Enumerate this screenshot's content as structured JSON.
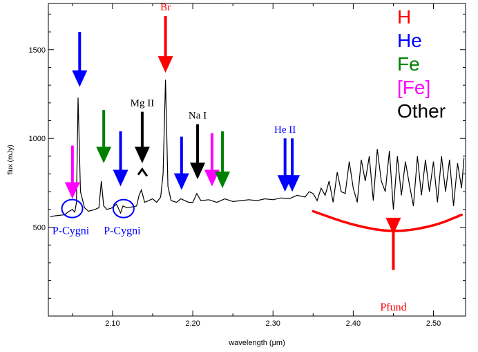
{
  "chart_data": {
    "type": "line",
    "xlabel": "wavelength (μm)",
    "ylabel": "flux (mJy)",
    "xlim": [
      2.02,
      2.54
    ],
    "ylim": [
      0,
      1760
    ],
    "x_ticks": [
      "2.10",
      "2.20",
      "2.30",
      "2.40",
      "2.50"
    ],
    "y_ticks": [
      "500",
      "1000",
      "1500"
    ],
    "x_tick_values": [
      2.1,
      2.2,
      2.3,
      2.4,
      2.5
    ],
    "y_tick_values": [
      500,
      1000,
      1500
    ],
    "grid": false,
    "legend_position": "top-right",
    "legend": [
      {
        "label": "H",
        "color": "#ff0000"
      },
      {
        "label": "He",
        "color": "#0000ff"
      },
      {
        "label": "Fe",
        "color": "#008000"
      },
      {
        "label": "[Fe]",
        "color": "#ff00ff"
      },
      {
        "label": "Other",
        "color": "#000000"
      }
    ],
    "line_color": "#000000",
    "series": [
      {
        "x": [
          2.022,
          2.03,
          2.04,
          2.046,
          2.05,
          2.053,
          2.055,
          2.057,
          2.06,
          2.065,
          2.07,
          2.078,
          2.083,
          2.086,
          2.089,
          2.093,
          2.1,
          2.105,
          2.11,
          2.113,
          2.118,
          2.125,
          2.13,
          2.133,
          2.136,
          2.14,
          2.145,
          2.15,
          2.155,
          2.16,
          2.163,
          2.166,
          2.169,
          2.173,
          2.18,
          2.185,
          2.19,
          2.195,
          2.2,
          2.205,
          2.21,
          2.22,
          2.23,
          2.24,
          2.25,
          2.26,
          2.27,
          2.28,
          2.29,
          2.3,
          2.31,
          2.32,
          2.33,
          2.34,
          2.345,
          2.35,
          2.355,
          2.36,
          2.365,
          2.37,
          2.375,
          2.38,
          2.385,
          2.39,
          2.395,
          2.4,
          2.405,
          2.41,
          2.415,
          2.42,
          2.425,
          2.43,
          2.435,
          2.44,
          2.445,
          2.45,
          2.455,
          2.46,
          2.465,
          2.47,
          2.475,
          2.48,
          2.485,
          2.49,
          2.495,
          2.5,
          2.505,
          2.51,
          2.515,
          2.52,
          2.525,
          2.53,
          2.535,
          2.538
        ],
        "y": [
          560,
          565,
          570,
          590,
          600,
          585,
          640,
          1230,
          700,
          610,
          590,
          600,
          610,
          760,
          620,
          600,
          610,
          630,
          580,
          620,
          610,
          615,
          620,
          680,
          710,
          640,
          650,
          660,
          640,
          670,
          800,
          1330,
          730,
          650,
          640,
          660,
          650,
          640,
          640,
          690,
          650,
          655,
          640,
          660,
          645,
          650,
          655,
          650,
          660,
          655,
          665,
          660,
          680,
          670,
          700,
          690,
          650,
          720,
          680,
          760,
          640,
          810,
          700,
          690,
          870,
          720,
          640,
          880,
          760,
          900,
          650,
          940,
          760,
          700,
          930,
          600,
          900,
          680,
          870,
          740,
          620,
          900,
          680,
          880,
          700,
          870,
          640,
          900,
          700,
          880,
          620,
          860,
          720,
          890
        ]
      }
    ],
    "line_markers": [
      {
        "label": "",
        "color": "#ff00ff",
        "x": 2.05,
        "tip": 660,
        "tail": 960
      },
      {
        "label": "",
        "color": "#0000ff",
        "x": 2.059,
        "tip": 1290,
        "tail": 1600
      },
      {
        "label": "",
        "color": "#008000",
        "x": 2.089,
        "tip": 860,
        "tail": 1160
      },
      {
        "label": "",
        "color": "#0000ff",
        "x": 2.11,
        "tip": 730,
        "tail": 1040
      },
      {
        "label": "Mg II",
        "color": "#000000",
        "x": 2.137,
        "tip": 860,
        "tail": 1150
      },
      {
        "label": "Br",
        "color": "#ff0000",
        "x": 2.166,
        "tip": 1370,
        "tail": 1690
      },
      {
        "label": "",
        "color": "#0000ff",
        "x": 2.186,
        "tip": 710,
        "tail": 1010
      },
      {
        "label": "Na I",
        "color": "#000000",
        "x": 2.206,
        "tip": 770,
        "tail": 1080
      },
      {
        "label": "",
        "color": "#ff00ff",
        "x": 2.224,
        "tip": 730,
        "tail": 1030
      },
      {
        "label": "",
        "color": "#008000",
        "x": 2.237,
        "tip": 720,
        "tail": 1040
      },
      {
        "label": "He II",
        "color": "#0000ff",
        "x": 2.315,
        "tip": 700,
        "tail": 1000
      },
      {
        "label": "",
        "color": "#0000ff",
        "x": 2.324,
        "tip": 700,
        "tail": 1000
      }
    ],
    "annotations": [
      {
        "text": "P-Cygni",
        "color": "#0000ff",
        "x": 2.048,
        "y": 590
      },
      {
        "text": "P-Cygni",
        "color": "#0000ff",
        "x": 2.112,
        "y": 590
      },
      {
        "text": "Pfund",
        "color": "#ff0000",
        "x": 2.45,
        "y": 160
      }
    ],
    "pfund_curve": {
      "color": "#ff0000",
      "x": [
        2.35,
        2.4,
        2.45,
        2.5,
        2.535
      ],
      "y": [
        590,
        510,
        470,
        505,
        570
      ]
    },
    "pfund_arrow": {
      "x": 2.45,
      "tip": 460,
      "tail": 260
    }
  }
}
